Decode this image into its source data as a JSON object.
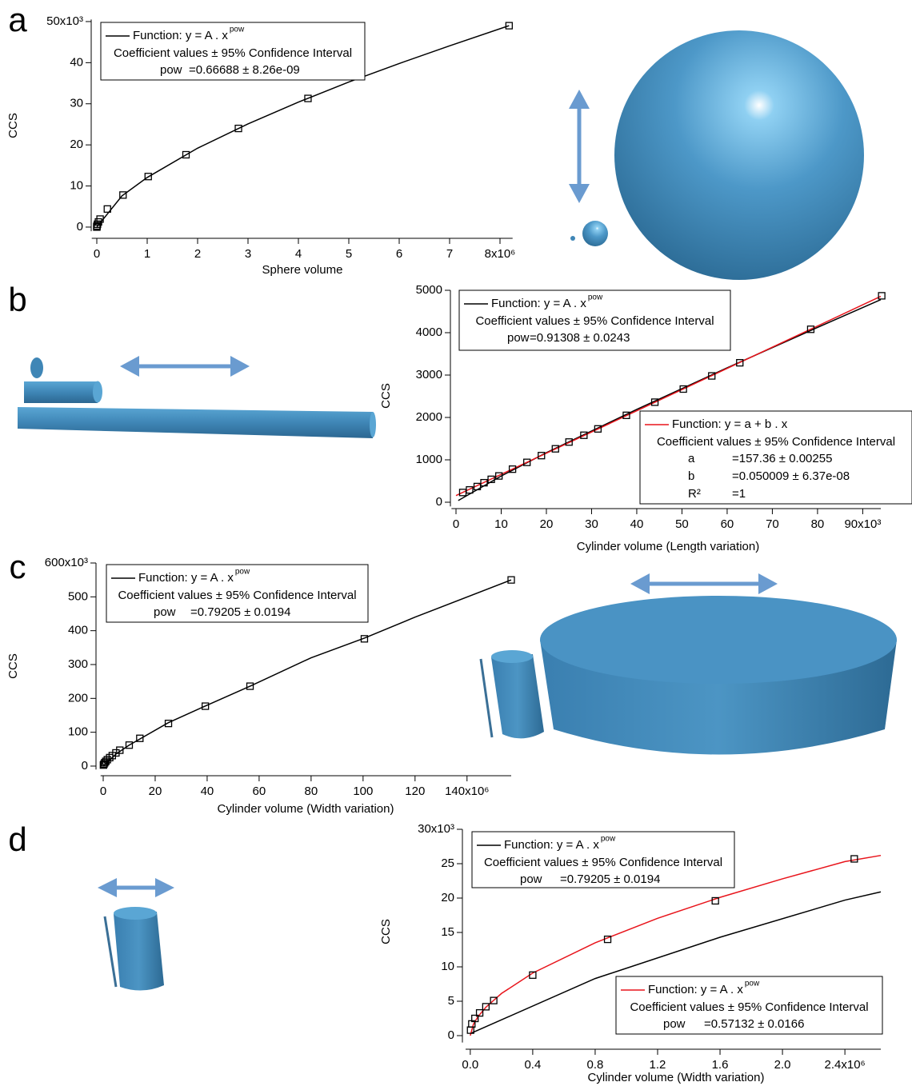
{
  "chart_data": [
    {
      "panel": "a",
      "type": "scatter",
      "x_label": "Sphere volume",
      "y_label": "CCS",
      "x": [
        0,
        0.0005,
        0.004,
        0.014,
        0.033,
        0.065,
        0.21,
        0.52,
        1.02,
        1.77,
        2.81,
        4.19,
        8.18
      ],
      "values": [
        0,
        0.08,
        0.3,
        0.7,
        1.25,
        1.95,
        4.4,
        7.8,
        12.3,
        17.6,
        24,
        31.3,
        49
      ],
      "fits": [
        {
          "color": "#000000",
          "x": [
            0,
            0.5,
            1,
            2,
            3,
            4,
            5,
            6,
            7,
            8.18
          ],
          "values": [
            0,
            7.6,
            12.07,
            19.2,
            25.1,
            30.4,
            35.3,
            39.8,
            44.1,
            49
          ],
          "legend": {
            "function": "Function: y = A . x",
            "sup": "pow",
            "header": "Coefficient values ± 95% Confidence Interval",
            "rows": [
              [
                "pow",
                "=0.66688 ± 8.26e-09"
              ]
            ]
          }
        }
      ],
      "xlim": [
        -0.1,
        8.25
      ],
      "ylim": [
        -1,
        50.5
      ],
      "xticks": [
        0,
        1,
        2,
        3,
        4,
        5,
        6,
        7,
        {
          "value": 8,
          "label": "8x10⁶"
        }
      ],
      "yticks": [
        0,
        10,
        20,
        30,
        40,
        {
          "value": 50,
          "label": "50x10³"
        }
      ]
    },
    {
      "panel": "b",
      "type": "scatter",
      "x_label": "Cylinder volume (Length variation)",
      "y_label": "CCS",
      "x": [
        1.5,
        3,
        4.7,
        6.2,
        7.8,
        9.5,
        12.5,
        15.7,
        18.9,
        22,
        25,
        28.3,
        31.4,
        37.7,
        44,
        50.3,
        56.6,
        62.8,
        78.5,
        94.2
      ],
      "values": [
        230,
        290,
        370,
        460,
        540,
        620,
        780,
        940,
        1100,
        1260,
        1420,
        1580,
        1730,
        2050,
        2360,
        2670,
        2980,
        3290,
        4080,
        4870
      ],
      "fits": [
        {
          "color": "#000000",
          "x": [
            0.5,
            10,
            20,
            40,
            60,
            80,
            94
          ],
          "values": [
            40,
            618,
            1168,
            2190,
            3171,
            4124,
            4780
          ],
          "legend": {
            "function": "Function: y = A . x",
            "sup": "pow",
            "header": "Coefficient values ± 95% Confidence Interval",
            "rows": [
              [
                "pow",
                "=0.91308 ± 0.0243"
              ]
            ]
          }
        },
        {
          "color": "#e8141b",
          "x": [
            0,
            94
          ],
          "values": [
            157,
            4858
          ],
          "legend": {
            "function": "Function: y = a + b . x",
            "header": "Coefficient values ± 95% Confidence Interval",
            "rows": [
              [
                "a",
                "=157.36 ± 0.00255"
              ],
              [
                "b",
                "=0.050009 ± 6.37e-08"
              ],
              [
                "R²",
                "=1"
              ]
            ]
          }
        }
      ],
      "xlim": [
        -1,
        94
      ],
      "ylim": [
        -100,
        5000
      ],
      "xticks": [
        0,
        10,
        20,
        30,
        40,
        50,
        60,
        70,
        80,
        {
          "value": 90,
          "label": "90x10³"
        }
      ],
      "yticks": [
        0,
        1000,
        2000,
        3000,
        4000,
        5000
      ]
    },
    {
      "panel": "c",
      "type": "scatter",
      "x_label": "Cylinder volume (Width variation)",
      "y_label": "CCS",
      "x": [
        0.1,
        0.3,
        0.6,
        1,
        1.6,
        2.5,
        3.5,
        4.9,
        6.4,
        10,
        14.1,
        25.1,
        39.3,
        56.5,
        100.5,
        157
      ],
      "values": [
        3,
        6,
        10,
        14,
        19,
        25,
        31,
        39,
        47,
        62,
        82,
        126,
        177,
        236,
        376,
        550
      ],
      "fits": [
        {
          "color": "#000000",
          "x": [
            0,
            5,
            10,
            25,
            40,
            56.5,
            80,
            100.5,
            120,
            157
          ],
          "values": [
            0,
            36,
            62,
            128,
            180,
            236,
            320,
            378,
            440,
            550
          ],
          "legend": {
            "function": "Function: y = A . x",
            "sup": "pow",
            "header": "Coefficient values ± 95% Confidence Interval",
            "rows": [
              [
                "pow",
                "=0.79205 ± 0.0194"
              ]
            ]
          }
        }
      ],
      "xlim": [
        -1,
        157
      ],
      "ylim": [
        -10,
        600
      ],
      "xticks": [
        0,
        20,
        40,
        60,
        80,
        100,
        120,
        {
          "value": 140,
          "label": "140x10⁶"
        }
      ],
      "yticks": [
        0,
        100,
        200,
        300,
        400,
        500,
        {
          "value": 600,
          "label": "600x10³"
        }
      ]
    },
    {
      "panel": "d",
      "type": "scatter",
      "x_label": "Cylinder volume (Width variation)",
      "y_label": "CCS",
      "x": [
        0.002,
        0.01,
        0.03,
        0.06,
        0.1,
        0.15,
        0.4,
        0.88,
        1.57,
        2.46
      ],
      "values": [
        0.8,
        1.7,
        2.5,
        3.3,
        4.2,
        5.1,
        8.8,
        14,
        19.6,
        25.7
      ],
      "fits": [
        {
          "color": "#000000",
          "x": [
            0,
            0.8,
            1.6,
            2.4,
            2.63
          ],
          "values": [
            0.3,
            8.3,
            14.3,
            19.7,
            20.9
          ],
          "legend": {
            "function": "Function: y = A . x",
            "sup": "pow",
            "header": "Coefficient values ± 95% Confidence Interval",
            "rows": [
              [
                "pow",
                "=0.79205 ± 0.0194"
              ]
            ]
          }
        },
        {
          "color": "#e8141b",
          "x": [
            0,
            0.02,
            0.05,
            0.1,
            0.2,
            0.4,
            0.8,
            1.2,
            1.6,
            2.0,
            2.4,
            2.63
          ],
          "values": [
            0,
            1.65,
            2.78,
            4.13,
            6.13,
            9.1,
            13.5,
            17.06,
            20.1,
            22.8,
            25.3,
            26.2
          ],
          "legend": {
            "function": "Function: y = A . x",
            "sup": "pow",
            "header": "Coefficient values ± 95% Confidence Interval",
            "rows": [
              [
                "pow",
                "=0.57132 ± 0.0166"
              ]
            ]
          }
        }
      ],
      "xlim": [
        -0.03,
        2.63
      ],
      "ylim": [
        -1,
        30
      ],
      "xticks": [
        {
          "value": 0,
          "label": "0.0"
        },
        0.4,
        0.8,
        1.2,
        1.6,
        {
          "value": 2,
          "label": "2.0"
        },
        {
          "value": 2.4,
          "label": "2.4x10⁶"
        }
      ],
      "yticks": [
        0,
        5,
        10,
        15,
        20,
        25,
        {
          "value": 30,
          "label": "30x10³"
        }
      ]
    }
  ]
}
